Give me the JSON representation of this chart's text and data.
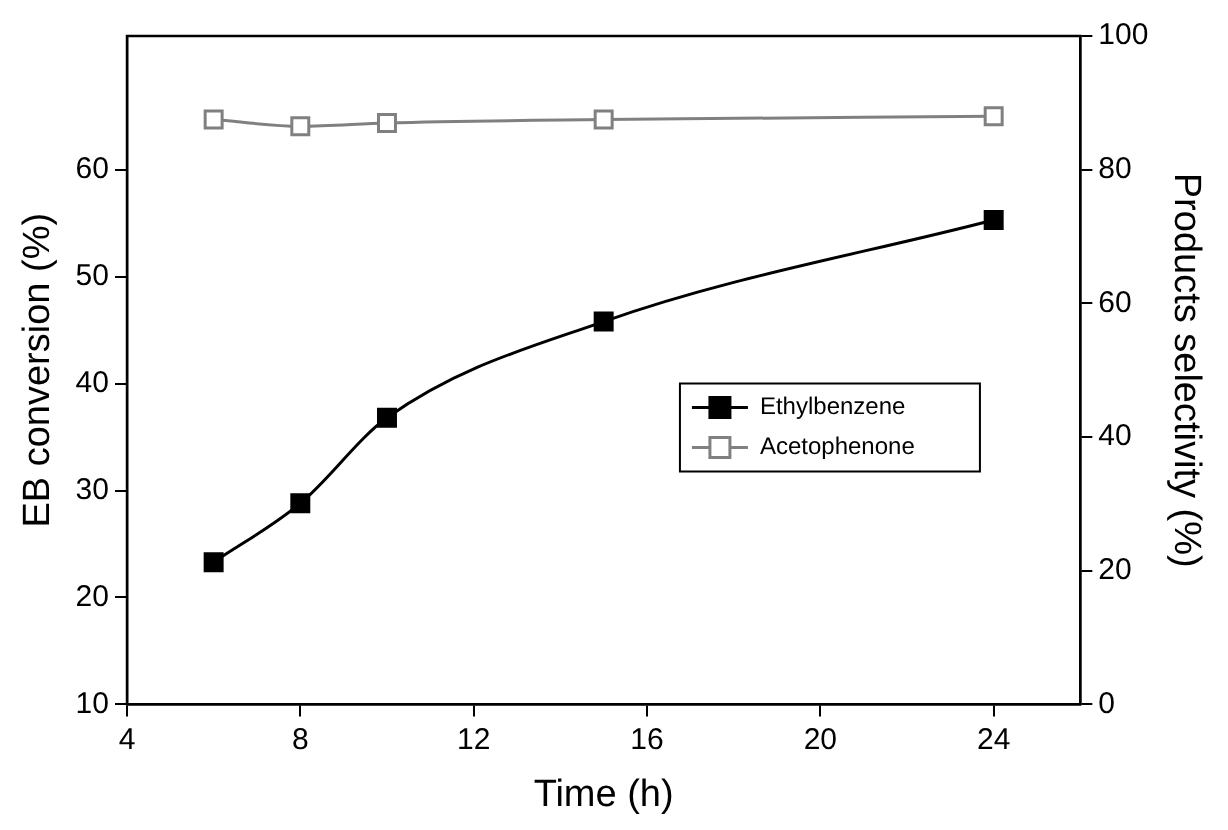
{
  "chart_data": {
    "type": "line",
    "xlabel": "Time (h)",
    "ylabel": "EB conversion (%)",
    "y2label": "Products selectivity (%)",
    "x": [
      6,
      8,
      10,
      15,
      24
    ],
    "series": [
      {
        "name": "Ethylbenzene",
        "color": "#000000",
        "values": [
          23.3,
          28.8,
          36.8,
          45.8,
          55.3
        ]
      },
      {
        "name": "Acetophenone",
        "color": "#808080",
        "axis": "y2",
        "values": [
          87.5,
          86.5,
          87,
          87.5,
          88
        ]
      }
    ],
    "xlim": [
      4,
      26
    ],
    "xticks": [
      4,
      8,
      12,
      16,
      20,
      24
    ],
    "ylim": [
      10,
      72.5
    ],
    "yticks": [
      10,
      20,
      30,
      40,
      50,
      60
    ],
    "y2lim": [
      0,
      100
    ],
    "y2ticks": [
      0,
      20,
      40,
      60,
      80,
      100
    ],
    "grid": false,
    "legend": "right",
    "marker": "square"
  }
}
